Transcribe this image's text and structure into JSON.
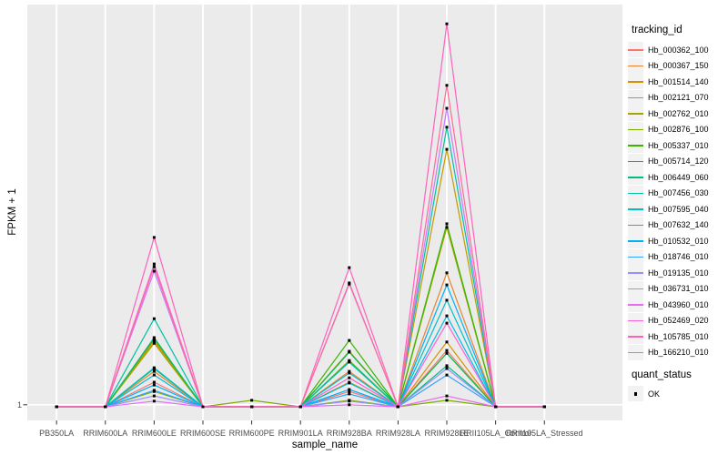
{
  "colors": {
    "background": "#FFFFFF",
    "panel": "#EBEBEB",
    "grid": "#FFFFFF",
    "tick": "#333333",
    "tick_label": "#4D4D4D",
    "axis_title": "#000000",
    "point": "#000000",
    "legend_key_bg": "#F2F2F2"
  },
  "axes": {
    "x_title": "sample_name",
    "y_title": "FPKM + 1",
    "y_tick_label": "1"
  },
  "legend": {
    "tracking_title": "tracking_id",
    "quant_title": "quant_status",
    "quant_ok_label": "OK"
  },
  "chart_data": {
    "type": "line",
    "title": "",
    "xlabel": "sample_name",
    "ylabel": "FPKM + 1",
    "legend_position": "right",
    "grid": true,
    "x_categories": [
      "PB350LA",
      "RRIM600LA",
      "RRIM600LE",
      "RRIM600SE",
      "RRIM600PE",
      "RRIM901LA",
      "RRIM928BA",
      "RRIM928LA",
      "RRIM928LE",
      "RRII105LA_Control",
      "RRII105LA_Stressed"
    ],
    "y_axis": {
      "scale": "log-like, single labeled tick",
      "labeled_ticks": [
        "1"
      ],
      "baseline_value": 1,
      "value_units": "relative height above the y=1 baseline (0 = baseline, 1 = panel top), estimated from pixels; only the tick '1' is labeled in the chart"
    },
    "point_marker": {
      "shape": "square",
      "color": "#000000",
      "meaning": "quant_status = OK at every sample point"
    },
    "series": [
      {
        "name": "Hb_000362_100",
        "color": "#F8766D",
        "values": [
          0,
          0,
          0.061,
          0,
          0,
          0,
          0.038,
          0,
          0.14,
          0,
          0
        ]
      },
      {
        "name": "Hb_000367_150",
        "color": "#EA8331",
        "values": [
          0,
          0,
          0.088,
          0,
          0,
          0,
          0.088,
          0,
          0.333,
          0,
          0
        ]
      },
      {
        "name": "Hb_001514_140",
        "color": "#D89000",
        "values": [
          0,
          0,
          0.163,
          0,
          0,
          0,
          0.061,
          0,
          0.161,
          0,
          0
        ]
      },
      {
        "name": "Hb_002121_070",
        "color": "#C09B00",
        "values": [
          0,
          0,
          0.167,
          0,
          0,
          0,
          0.138,
          0,
          0.64,
          0,
          0
        ]
      },
      {
        "name": "Hb_002762_010",
        "color": "#A3A500",
        "values": [
          0,
          0,
          0.158,
          0,
          0,
          0,
          0.115,
          0,
          0.446,
          0,
          0
        ]
      },
      {
        "name": "Hb_002876_100",
        "color": "#7CAE00",
        "values": [
          0,
          0,
          0.038,
          0,
          0.016,
          0,
          0.016,
          0,
          0.016,
          0,
          0
        ]
      },
      {
        "name": "Hb_005337_010",
        "color": "#39B600",
        "values": [
          0,
          0,
          0.17,
          0,
          0,
          0,
          0.165,
          0,
          0.455,
          0,
          0
        ]
      },
      {
        "name": "Hb_005714_120",
        "color": "#00BB4E",
        "values": [
          0,
          0,
          0.095,
          0,
          0,
          0,
          0.136,
          0,
          0.133,
          0,
          0
        ]
      },
      {
        "name": "Hb_006449_060",
        "color": "#00BF7D",
        "values": [
          0,
          0,
          0.172,
          0,
          0,
          0,
          0.113,
          0,
          0.102,
          0,
          0
        ]
      },
      {
        "name": "Hb_007456_030",
        "color": "#00C1A3",
        "values": [
          0,
          0,
          0.219,
          0,
          0,
          0,
          0.111,
          0,
          0.695,
          0,
          0
        ]
      },
      {
        "name": "Hb_007595_040",
        "color": "#00BFC4",
        "values": [
          0,
          0,
          0.097,
          0,
          0,
          0,
          0.084,
          0,
          0.265,
          0,
          0
        ]
      },
      {
        "name": "Hb_007632_140",
        "color": "#00BAE0",
        "values": [
          0,
          0,
          0.079,
          0,
          0,
          0,
          0.059,
          0,
          0.226,
          0,
          0
        ]
      },
      {
        "name": "Hb_010532_010",
        "color": "#00B0F6",
        "values": [
          0,
          0,
          0.054,
          0,
          0,
          0,
          0.043,
          0,
          0.303,
          0,
          0
        ]
      },
      {
        "name": "Hb_018746_010",
        "color": "#35A2FF",
        "values": [
          0,
          0,
          0.041,
          0,
          0,
          0,
          0.032,
          0,
          0.079,
          0,
          0
        ]
      },
      {
        "name": "Hb_019135_010",
        "color": "#9590FF",
        "values": [
          0,
          0,
          0.027,
          0,
          0,
          0,
          0.014,
          0,
          0.095,
          0,
          0
        ]
      },
      {
        "name": "Hb_036731_010",
        "color": "#C77CFF",
        "values": [
          0,
          0,
          0.337,
          0,
          0,
          0,
          0.305,
          0,
          0.742,
          0,
          0
        ]
      },
      {
        "name": "Hb_043960_010",
        "color": "#E76BF3",
        "values": [
          0,
          0,
          0.014,
          0,
          0,
          0,
          0.005,
          0,
          0.027,
          0,
          0
        ]
      },
      {
        "name": "Hb_052469_020",
        "color": "#FA62DB",
        "values": [
          0,
          0,
          0.355,
          0,
          0,
          0,
          0.072,
          0,
          0.208,
          0,
          0
        ]
      },
      {
        "name": "Hb_105785_010",
        "color": "#FF62BC",
        "values": [
          0,
          0,
          0.421,
          0,
          0,
          0,
          0.346,
          0,
          0.952,
          0,
          0
        ]
      },
      {
        "name": "Hb_166210_010",
        "color": "#FF6A98",
        "values": [
          0,
          0,
          0.348,
          0,
          0,
          0,
          0.308,
          0,
          0.799,
          0,
          0
        ]
      }
    ]
  }
}
